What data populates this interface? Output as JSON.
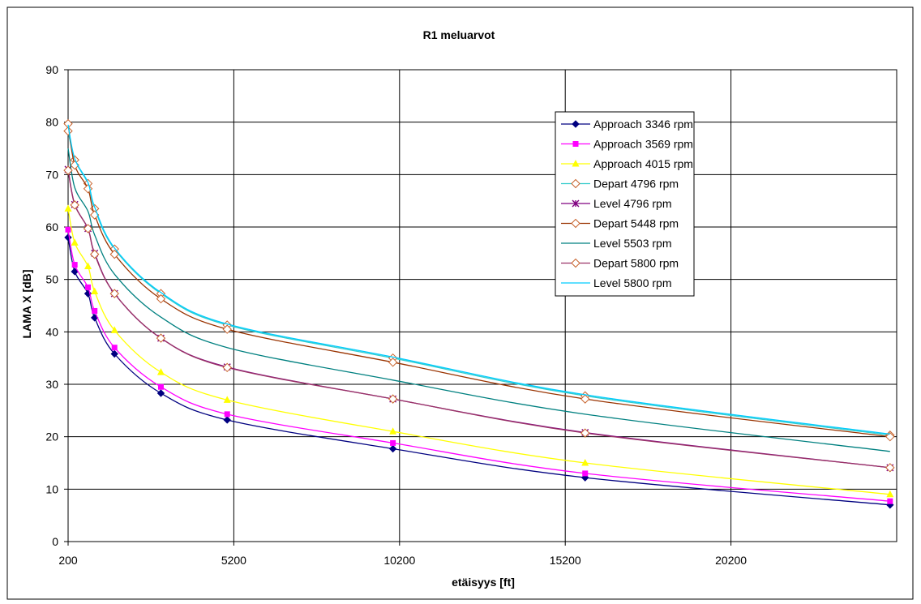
{
  "chart_data": {
    "type": "line",
    "title": "R1 meluarvot",
    "xlabel": "etäisyys [ft]",
    "ylabel": "LAMA X [dB]",
    "xlim": [
      200,
      25200
    ],
    "ylim": [
      0,
      90
    ],
    "x_ticks": [
      200,
      5200,
      10200,
      15200,
      20200
    ],
    "y_ticks": [
      0,
      10,
      20,
      30,
      40,
      50,
      60,
      70,
      80,
      90
    ],
    "grid": true,
    "legend_position": "top-right",
    "x": [
      200,
      400,
      800,
      1000,
      1600,
      3000,
      5000,
      10000,
      15800,
      25000
    ],
    "series": [
      {
        "name": "Approach 3346 rpm",
        "color": "#000080",
        "marker": "diamond-filled",
        "values": [
          58,
          51.5,
          47.3,
          42.7,
          35.8,
          28.3,
          23.2,
          17.7,
          12.2,
          7
        ]
      },
      {
        "name": "Approach 3569 rpm",
        "color": "#ff00ff",
        "marker": "square",
        "values": [
          59.5,
          52.8,
          48.5,
          44,
          37,
          29.5,
          24.3,
          18.8,
          13,
          7.7
        ]
      },
      {
        "name": "Approach 4015 rpm",
        "color": "#ffff00",
        "marker": "triangle",
        "values": [
          63.5,
          57,
          52.5,
          47.7,
          40.3,
          32.3,
          27,
          21,
          15,
          9
        ]
      },
      {
        "name": "Depart 4796 rpm",
        "color": "#33cccc",
        "marker": "diamond-open",
        "values": [
          78.3,
          72.8,
          68.3,
          63.5,
          55.8,
          47.3,
          41.3,
          35,
          27.8,
          20.3
        ]
      },
      {
        "name": "Level 4796 rpm",
        "color": "#800080",
        "marker": "star",
        "values": [
          71,
          64.3,
          59.7,
          55,
          47.3,
          38.8,
          33.3,
          27.2,
          20.8,
          14.1
        ]
      },
      {
        "name": "Depart 5448 rpm",
        "color": "#993300",
        "marker": "diamond-open",
        "values": [
          79.7,
          71.8,
          67.3,
          62.3,
          54.8,
          46.3,
          40.5,
          34.2,
          27.2,
          20
        ]
      },
      {
        "name": "Level 5503 rpm",
        "color": "#008080",
        "marker": "none",
        "values": [
          75,
          67.5,
          63,
          58.5,
          51,
          42.8,
          37,
          30.8,
          24.3,
          17.2
        ]
      },
      {
        "name": "Depart 5800 rpm",
        "color": "#993366",
        "marker": "diamond-open",
        "values": [
          70.8,
          64.2,
          59.7,
          54.8,
          47.3,
          38.8,
          33.2,
          27.2,
          20.7,
          14.1
        ]
      },
      {
        "name": "Level 5800 rpm",
        "color": "#00ccff",
        "marker": "none",
        "values": [
          79.5,
          73,
          68.5,
          63.8,
          56,
          47.5,
          41.5,
          35.2,
          28,
          20.5
        ]
      }
    ]
  }
}
